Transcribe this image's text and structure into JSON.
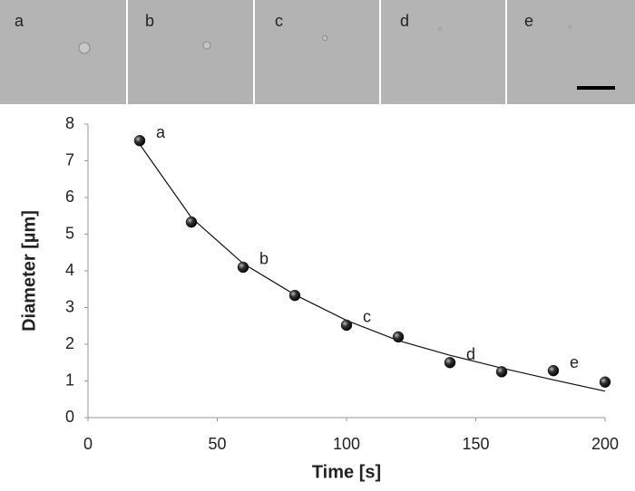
{
  "chart_data": {
    "type": "scatter",
    "panel_labels": [
      "a",
      "b",
      "c",
      "d",
      "e"
    ],
    "x_label": "Time [s]",
    "y_label": "Diameter [µm]",
    "x": [
      20,
      40,
      60,
      80,
      100,
      120,
      140,
      160,
      180,
      200
    ],
    "series": [
      {
        "mode": "markers",
        "color": "#222222",
        "values": [
          7.55,
          5.33,
          4.1,
          3.33,
          2.52,
          2.2,
          1.5,
          1.25,
          1.28,
          0.97
        ]
      },
      {
        "mode": "line",
        "color": "#111111",
        "values": [
          7.45,
          5.45,
          4.2,
          3.35,
          2.65,
          2.1,
          1.7,
          1.35,
          1.03,
          0.72
        ]
      }
    ],
    "point_labels": [
      "a",
      null,
      "b",
      null,
      "c",
      null,
      "d",
      null,
      "e",
      null
    ],
    "xlim": [
      0,
      200
    ],
    "xticks": [
      0,
      50,
      100,
      150,
      200
    ],
    "ylim": [
      0,
      8
    ],
    "yticks": [
      0,
      1,
      2,
      3,
      4,
      5,
      6,
      7,
      8
    ],
    "grid": false
  }
}
